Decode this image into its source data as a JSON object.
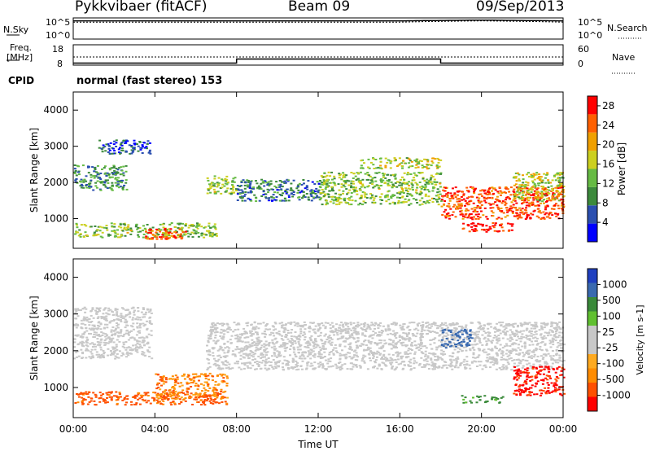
{
  "header": {
    "station": "Pykkvibaer (fitACF)",
    "beam": "Beam 09",
    "date": "09/Sep/2013"
  },
  "noise_panel": {
    "left_label": "N.Sky",
    "right_label": "N.Search",
    "left_ticks": [
      "10^5",
      "10^0"
    ],
    "right_ticks": [
      "10^5",
      "10^0"
    ]
  },
  "freq_panel": {
    "left_label_line1": "Freq.",
    "left_label_line2": "[MHz]",
    "right_label": "Nave",
    "left_ticks": [
      "18",
      "8"
    ],
    "right_ticks": [
      "60",
      "0"
    ]
  },
  "cpid": {
    "label": "CPID",
    "mode": "normal (fast stereo) 153"
  },
  "time_axis": {
    "label": "Time UT",
    "ticks": [
      "00:00",
      "04:00",
      "08:00",
      "12:00",
      "16:00",
      "20:00",
      "00:00"
    ]
  },
  "colors": {
    "power": [
      "#0000ff",
      "#2b4fb0",
      "#3c8a3c",
      "#66bb44",
      "#ccd020",
      "#f0a000",
      "#ff6000",
      "#ff0000"
    ],
    "velocity": [
      "#ff0000",
      "#ff5000",
      "#ff8c00",
      "#ffaa20",
      "#c8c8c8",
      "#c8c8c8",
      "#60c030",
      "#3a8a3a",
      "#3a6ab0",
      "#2040c0"
    ],
    "ground_scatter": "#c8c8c8"
  },
  "chart_data": [
    {
      "type": "line",
      "title": "",
      "x": [
        "00:00",
        "04:00",
        "08:00",
        "12:00",
        "16:00",
        "20:00",
        "24:00"
      ],
      "xlim": [
        0,
        24
      ],
      "log_scale": true,
      "ylim": [
        1,
        100000
      ],
      "series": [
        {
          "values": [
            20000,
            20000,
            20000,
            20000,
            20000,
            30000,
            20000
          ]
        },
        {
          "values": [
            10000,
            10000,
            10000,
            10000,
            10000,
            20000,
            10000
          ]
        }
      ]
    },
    {
      "type": "line",
      "title": "",
      "xlim": [
        0,
        24
      ],
      "ylim": [
        8,
        18
      ],
      "y2lim": [
        0,
        60
      ],
      "series": [
        {
          "x": [
            0,
            8,
            8,
            18,
            18,
            24
          ],
          "values": [
            9,
            9,
            11,
            11,
            9,
            9
          ]
        },
        {
          "x": [
            0,
            24
          ],
          "values": [
            12,
            12
          ]
        }
      ]
    },
    {
      "type": "heatmap",
      "title": "",
      "xlabel": "Time UT",
      "ylabel": "Slant Range [km]",
      "xlim": [
        0,
        24
      ],
      "ylim": [
        180,
        4500
      ],
      "yticks": [
        1000,
        2000,
        3000,
        4000
      ],
      "colorbar_label": "Power [dB]",
      "colorbar_ticks": [
        4,
        8,
        12,
        16,
        20,
        24,
        28
      ],
      "colorbar_range": [
        0,
        30
      ],
      "regions": [
        {
          "t": [
            0,
            2.6
          ],
          "r": [
            1800,
            2500
          ],
          "power": 10
        },
        {
          "t": [
            1.2,
            3.8
          ],
          "r": [
            2800,
            3200
          ],
          "power": 6
        },
        {
          "t": [
            0,
            7
          ],
          "r": [
            500,
            900
          ],
          "power": 14
        },
        {
          "t": [
            3.5,
            5.5
          ],
          "r": [
            450,
            750
          ],
          "power": 26
        },
        {
          "t": [
            6.5,
            8
          ],
          "r": [
            1700,
            2200
          ],
          "power": 14
        },
        {
          "t": [
            8,
            12
          ],
          "r": [
            1500,
            2100
          ],
          "power": 8
        },
        {
          "t": [
            12,
            18
          ],
          "r": [
            1400,
            2300
          ],
          "power": 14
        },
        {
          "t": [
            14,
            18
          ],
          "r": [
            2400,
            2700
          ],
          "power": 16
        },
        {
          "t": [
            18,
            24
          ],
          "r": [
            1000,
            1900
          ],
          "power": 26
        },
        {
          "t": [
            19,
            21.5
          ],
          "r": [
            650,
            900
          ],
          "power": 28
        },
        {
          "t": [
            21.5,
            24
          ],
          "r": [
            1500,
            2300
          ],
          "power": 16
        }
      ]
    },
    {
      "type": "heatmap",
      "title": "",
      "xlabel": "Time UT",
      "ylabel": "Slant Range [km]",
      "xlim": [
        0,
        24
      ],
      "ylim": [
        180,
        4500
      ],
      "yticks": [
        1000,
        2000,
        3000,
        4000
      ],
      "colorbar_label": "Velocity [m s-1]",
      "colorbar_ticks": [
        1000,
        500,
        100,
        25,
        -25,
        -100,
        -500,
        -1000
      ],
      "regions": [
        {
          "t": [
            0,
            3.8
          ],
          "r": [
            1800,
            3200
          ],
          "velocity": 0
        },
        {
          "t": [
            0,
            7.5
          ],
          "r": [
            550,
            900
          ],
          "velocity": -350
        },
        {
          "t": [
            4,
            7.5
          ],
          "r": [
            700,
            1400
          ],
          "velocity": -200
        },
        {
          "t": [
            6.5,
            24
          ],
          "r": [
            1500,
            2800
          ],
          "velocity": 0
        },
        {
          "t": [
            18,
            19.5
          ],
          "r": [
            2100,
            2600
          ],
          "velocity": 800
        },
        {
          "t": [
            19,
            21
          ],
          "r": [
            600,
            800
          ],
          "velocity": 150
        },
        {
          "t": [
            21.5,
            24
          ],
          "r": [
            800,
            1600
          ],
          "velocity": -600
        }
      ]
    }
  ]
}
